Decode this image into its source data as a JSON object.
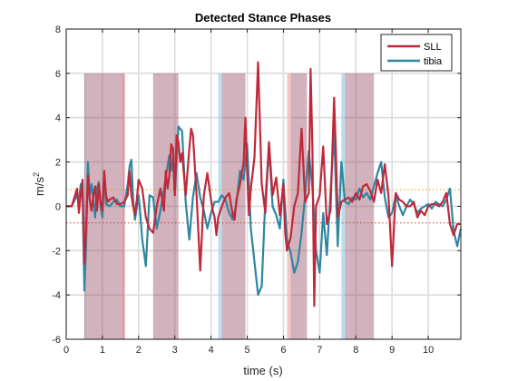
{
  "chart_data": {
    "type": "line",
    "title": "Detected Stance Phases",
    "xlabel": "time (s)",
    "ylabel_base": "m/s",
    "ylabel_exp": "2",
    "xlim": [
      0,
      10.9
    ],
    "ylim": [
      -6,
      8
    ],
    "xticks": [
      0,
      1,
      2,
      3,
      4,
      5,
      6,
      7,
      8,
      9,
      10
    ],
    "yticks": [
      -6,
      -4,
      -2,
      0,
      2,
      4,
      6,
      8
    ],
    "grid": true,
    "legend_position": "top-right",
    "stance_color": "#8b3f5a",
    "stance_top": 6,
    "stance_bottom": -6,
    "stance_phases": [
      [
        0.5,
        1.6
      ],
      [
        2.4,
        3.1
      ],
      [
        4.3,
        4.95
      ],
      [
        6.2,
        6.65
      ],
      [
        7.7,
        8.5
      ]
    ],
    "edge_bands": [
      {
        "x": [
          0.5,
          0.53
        ],
        "color": "#a8d4e6"
      },
      {
        "x": [
          1.57,
          1.63
        ],
        "color": "#f5b8b8"
      },
      {
        "x": [
          4.2,
          4.3
        ],
        "color": "#a8d4e6"
      },
      {
        "x": [
          6.1,
          6.2
        ],
        "color": "#f5b8b8"
      },
      {
        "x": [
          7.6,
          7.7
        ],
        "color": "#a8d4e6"
      }
    ],
    "threshold_lines": [
      {
        "y": 0.75,
        "color": "#d4a017"
      },
      {
        "y": -0.75,
        "color": "#d04040"
      }
    ],
    "series": [
      {
        "name": "SLL",
        "color": "#c0283a",
        "x": [
          0,
          0.15,
          0.3,
          0.35,
          0.4,
          0.45,
          0.5,
          0.55,
          0.6,
          0.65,
          0.7,
          0.75,
          0.8,
          0.85,
          0.9,
          0.95,
          1.0,
          1.05,
          1.1,
          1.15,
          1.2,
          1.3,
          1.4,
          1.5,
          1.6,
          1.7,
          1.75,
          1.8,
          1.85,
          1.9,
          1.95,
          2.0,
          2.1,
          2.2,
          2.3,
          2.4,
          2.5,
          2.6,
          2.7,
          2.75,
          2.8,
          2.85,
          2.9,
          2.95,
          3.0,
          3.05,
          3.1,
          3.15,
          3.2,
          3.3,
          3.4,
          3.45,
          3.5,
          3.6,
          3.7,
          3.8,
          3.9,
          4.0,
          4.05,
          4.1,
          4.15,
          4.2,
          4.3,
          4.4,
          4.5,
          4.6,
          4.65,
          4.7,
          4.8,
          4.9,
          4.95,
          5.0,
          5.05,
          5.1,
          5.2,
          5.3,
          5.4,
          5.5,
          5.6,
          5.7,
          5.8,
          5.9,
          5.95,
          6.0,
          6.05,
          6.1,
          6.2,
          6.3,
          6.4,
          6.5,
          6.6,
          6.7,
          6.75,
          6.8,
          6.85,
          6.9,
          7.0,
          7.1,
          7.2,
          7.3,
          7.4,
          7.45,
          7.5,
          7.6,
          7.7,
          7.8,
          7.9,
          8.0,
          8.1,
          8.2,
          8.3,
          8.4,
          8.5,
          8.6,
          8.7,
          8.8,
          8.9,
          9.0,
          9.1,
          9.2,
          9.3,
          9.4,
          9.5,
          9.6,
          9.7,
          9.8,
          9.9,
          10.0,
          10.1,
          10.2,
          10.3,
          10.4,
          10.5,
          10.6,
          10.7,
          10.8,
          10.9
        ],
        "y": [
          0,
          0,
          0.8,
          -0.3,
          0.5,
          1.2,
          -2.6,
          -1.0,
          1.4,
          0.3,
          -0.2,
          0.5,
          0.9,
          -0.2,
          1.0,
          0.2,
          -0.2,
          1.6,
          0.5,
          0.2,
          0.3,
          0.4,
          0.1,
          0.1,
          0.2,
          0.5,
          1.6,
          0.5,
          0.0,
          -0.4,
          0.3,
          1.2,
          0.8,
          -0.5,
          -1.0,
          -1.2,
          0.0,
          0.8,
          -0.2,
          1.6,
          0.8,
          1.4,
          2.8,
          2.6,
          0.5,
          3.2,
          2.9,
          2.0,
          2.4,
          0.5,
          2.6,
          3.5,
          3.2,
          0.5,
          -2.9,
          0.5,
          1.5,
          0.3,
          -0.2,
          -0.5,
          -1.3,
          -0.5,
          0.0,
          0.4,
          0.6,
          -0.4,
          -0.6,
          0.3,
          1.0,
          2.0,
          4.0,
          1.5,
          -0.4,
          0.8,
          2.2,
          6.5,
          1.0,
          -0.3,
          2.9,
          0.5,
          1.3,
          -0.4,
          0.3,
          1.0,
          -1.2,
          -2.0,
          -1.4,
          0.0,
          0.6,
          3.5,
          0.2,
          0.6,
          6.2,
          2.6,
          -4.5,
          0.0,
          0.5,
          2.7,
          -0.8,
          -0.2,
          4.9,
          2.4,
          -0.5,
          0.2,
          0.3,
          0.4,
          0.2,
          0.6,
          0.3,
          0.9,
          1.0,
          0.7,
          0.2,
          1.2,
          0.6,
          1.9,
          0.5,
          -2.7,
          0.6,
          0.3,
          0.2,
          0.0,
          0.0,
          0.2,
          -0.5,
          -0.2,
          -0.4,
          0.0,
          0.1,
          0.1,
          0.0,
          0.2,
          0.6,
          -0.8,
          -1.3,
          -0.8,
          -0.8
        ]
      },
      {
        "name": "tibia",
        "color": "#2e86a0",
        "x": [
          0,
          0.15,
          0.3,
          0.35,
          0.4,
          0.45,
          0.5,
          0.55,
          0.6,
          0.65,
          0.7,
          0.75,
          0.8,
          0.85,
          0.9,
          0.95,
          1.0,
          1.05,
          1.1,
          1.2,
          1.3,
          1.4,
          1.5,
          1.6,
          1.7,
          1.75,
          1.8,
          1.85,
          1.9,
          2.0,
          2.05,
          2.1,
          2.15,
          2.2,
          2.3,
          2.4,
          2.5,
          2.6,
          2.7,
          2.8,
          2.85,
          2.9,
          2.95,
          3.0,
          3.1,
          3.2,
          3.3,
          3.4,
          3.5,
          3.6,
          3.7,
          3.8,
          3.9,
          4.0,
          4.1,
          4.2,
          4.3,
          4.4,
          4.5,
          4.6,
          4.7,
          4.8,
          4.9,
          5.0,
          5.1,
          5.2,
          5.3,
          5.4,
          5.5,
          5.6,
          5.7,
          5.8,
          5.9,
          6.0,
          6.1,
          6.2,
          6.3,
          6.4,
          6.5,
          6.6,
          6.7,
          6.8,
          6.9,
          7.0,
          7.1,
          7.2,
          7.3,
          7.4,
          7.5,
          7.6,
          7.7,
          7.8,
          7.9,
          8.0,
          8.1,
          8.2,
          8.3,
          8.4,
          8.5,
          8.6,
          8.7,
          8.8,
          8.9,
          9.0,
          9.1,
          9.2,
          9.3,
          9.4,
          9.5,
          9.6,
          9.7,
          9.8,
          9.9,
          10.0,
          10.1,
          10.2,
          10.3,
          10.4,
          10.5,
          10.6,
          10.7,
          10.8,
          10.9
        ],
        "y": [
          0,
          0,
          0.5,
          0.2,
          1.0,
          0.5,
          -3.8,
          -1.8,
          2.0,
          0.5,
          1.0,
          0.3,
          -0.5,
          0.8,
          1.1,
          0.0,
          -0.5,
          1.5,
          0.1,
          0.0,
          0.2,
          0.3,
          0.0,
          0.0,
          1.0,
          1.8,
          2.1,
          0.3,
          -0.6,
          0.5,
          -0.4,
          -1.5,
          -2.1,
          -2.7,
          0.5,
          0.4,
          -1.0,
          -0.2,
          0.8,
          1.8,
          2.3,
          1.6,
          2.2,
          0.5,
          3.6,
          3.4,
          0.2,
          -1.5,
          0.4,
          1.5,
          0.4,
          -0.2,
          -1.0,
          -0.3,
          0.2,
          0.2,
          0.5,
          0.3,
          -0.3,
          -0.6,
          0.1,
          1.6,
          1.2,
          2.8,
          -1.0,
          -2.5,
          -4.0,
          -3.6,
          0.3,
          2.7,
          0.0,
          -0.4,
          -1.0,
          1.2,
          -1.5,
          -2.1,
          -3.0,
          -2.5,
          -1.2,
          0.5,
          2.5,
          0.8,
          -2.0,
          -3.0,
          -0.3,
          -2.2,
          0.6,
          3.4,
          -1.8,
          2.0,
          0.2,
          0.1,
          0.4,
          0.3,
          0.8,
          0.4,
          0.6,
          0.3,
          0.9,
          1.5,
          2.0,
          0.4,
          -0.5,
          -0.3,
          0.5,
          0.0,
          -0.4,
          0.0,
          0.3,
          0.1,
          -0.3,
          -0.1,
          0.0,
          0.1,
          -0.1,
          0.2,
          0.1,
          0.0,
          0.3,
          0.8,
          -1.1,
          -1.8,
          -1.0
        ]
      }
    ]
  }
}
